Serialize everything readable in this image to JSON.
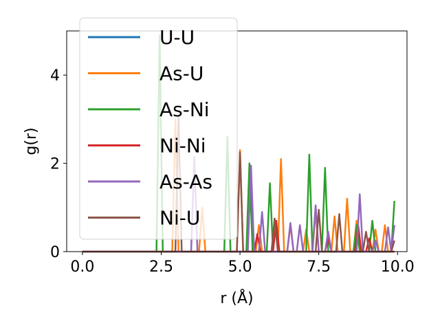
{
  "chart_data": {
    "type": "line",
    "title": "",
    "xlabel": "r (Å)",
    "ylabel": "g(r)",
    "xlim": [
      -0.5,
      10.3
    ],
    "ylim": [
      0,
      5.0
    ],
    "x_ticks": [
      0.0,
      2.5,
      5.0,
      7.5,
      10.0
    ],
    "x_tick_labels": [
      "0.0",
      "2.5",
      "5.0",
      "7.5",
      "10.0"
    ],
    "y_ticks": [
      0,
      2,
      4
    ],
    "y_tick_labels": [
      "0",
      "2",
      "4"
    ],
    "grid": false,
    "legend_placement": "upper-left",
    "series": [
      {
        "name": "U-U",
        "color": "#1f77b4",
        "x": [
          0.0,
          9.9
        ],
        "y": [
          0.0,
          0.0
        ]
      },
      {
        "name": "As-U",
        "color": "#ff7f0e",
        "x": [
          0.0,
          2.85,
          2.95,
          3.05,
          3.7,
          3.8,
          3.9,
          4.9,
          5.0,
          5.1,
          5.5,
          5.6,
          5.7,
          6.2,
          6.3,
          6.4,
          6.5,
          6.6,
          6.7,
          7.0,
          7.1,
          7.2,
          7.3,
          7.4,
          7.5,
          7.9,
          8.0,
          8.1,
          8.3,
          8.4,
          8.5,
          8.6,
          8.7,
          8.8,
          9.2,
          9.3,
          9.4,
          9.5,
          9.6,
          9.7,
          9.8
        ],
        "y": [
          0.0,
          0.0,
          3.0,
          0.0,
          0.0,
          1.0,
          0.0,
          0.0,
          2.3,
          0.0,
          0.0,
          0.6,
          0.0,
          0.0,
          2.1,
          0.0,
          0.0,
          0.6,
          0.0,
          0.0,
          0.5,
          0.0,
          0.0,
          0.9,
          0.0,
          0.0,
          0.8,
          0.0,
          0.0,
          1.2,
          0.0,
          0.0,
          0.7,
          0.0,
          0.0,
          0.5,
          0.0,
          0.0,
          0.6,
          0.0,
          0.0
        ]
      },
      {
        "name": "As-Ni",
        "color": "#2ca02c",
        "x": [
          0.0,
          2.35,
          2.45,
          2.55,
          4.5,
          4.6,
          4.7,
          5.2,
          5.3,
          5.4,
          5.85,
          5.95,
          6.05,
          7.1,
          7.2,
          7.3,
          7.6,
          7.7,
          7.8,
          8.6,
          8.7,
          8.8,
          9.1,
          9.2,
          9.3,
          9.8,
          9.9
        ],
        "y": [
          0.0,
          0.0,
          4.9,
          0.0,
          0.0,
          2.6,
          0.0,
          0.0,
          2.0,
          0.0,
          0.0,
          1.55,
          0.0,
          0.0,
          2.2,
          0.0,
          0.0,
          1.9,
          0.0,
          0.0,
          0.6,
          0.0,
          0.0,
          0.7,
          0.0,
          0.0,
          1.15
        ]
      },
      {
        "name": "Ni-Ni",
        "color": "#d62728",
        "x": [
          0.0,
          5.45,
          5.55,
          5.65,
          6.05,
          6.15,
          6.25,
          7.7,
          7.8,
          7.9,
          8.65,
          8.75,
          8.85,
          9.0,
          9.1,
          9.2,
          9.9
        ],
        "y": [
          0.0,
          0.0,
          0.4,
          0.0,
          0.0,
          0.7,
          0.0,
          0.0,
          0.3,
          0.0,
          0.0,
          0.6,
          0.0,
          0.0,
          0.3,
          0.0,
          0.0
        ]
      },
      {
        "name": "As-As",
        "color": "#9467bd",
        "x": [
          0.0,
          3.45,
          3.55,
          3.65,
          5.25,
          5.35,
          5.45,
          5.6,
          5.7,
          5.8,
          6.5,
          6.6,
          6.7,
          6.8,
          6.9,
          7.0,
          7.3,
          7.4,
          7.5,
          7.7,
          7.8,
          7.9,
          8.7,
          8.8,
          8.9,
          9.2,
          9.3,
          9.4,
          9.6,
          9.7,
          9.8,
          9.9
        ],
        "y": [
          0.0,
          0.0,
          2.15,
          0.0,
          0.0,
          1.95,
          0.0,
          0.0,
          0.9,
          0.0,
          0.0,
          0.65,
          0.0,
          0.0,
          0.6,
          0.0,
          0.0,
          1.05,
          0.0,
          0.0,
          0.45,
          0.0,
          0.0,
          1.3,
          0.0,
          0.0,
          0.25,
          0.0,
          0.0,
          0.55,
          0.0,
          0.6
        ]
      },
      {
        "name": "Ni-U",
        "color": "#8c564b",
        "x": [
          0.0,
          2.95,
          3.05,
          3.15,
          4.9,
          5.0,
          5.1,
          6.0,
          6.1,
          6.2,
          7.4,
          7.5,
          7.6,
          8.05,
          8.15,
          8.25,
          8.9,
          9.0,
          9.1,
          9.8,
          9.9
        ],
        "y": [
          0.0,
          0.0,
          3.05,
          0.0,
          0.0,
          2.25,
          0.0,
          0.0,
          0.75,
          0.0,
          0.0,
          0.95,
          0.0,
          0.0,
          0.85,
          0.0,
          0.0,
          0.45,
          0.0,
          0.0,
          0.25
        ]
      }
    ]
  }
}
